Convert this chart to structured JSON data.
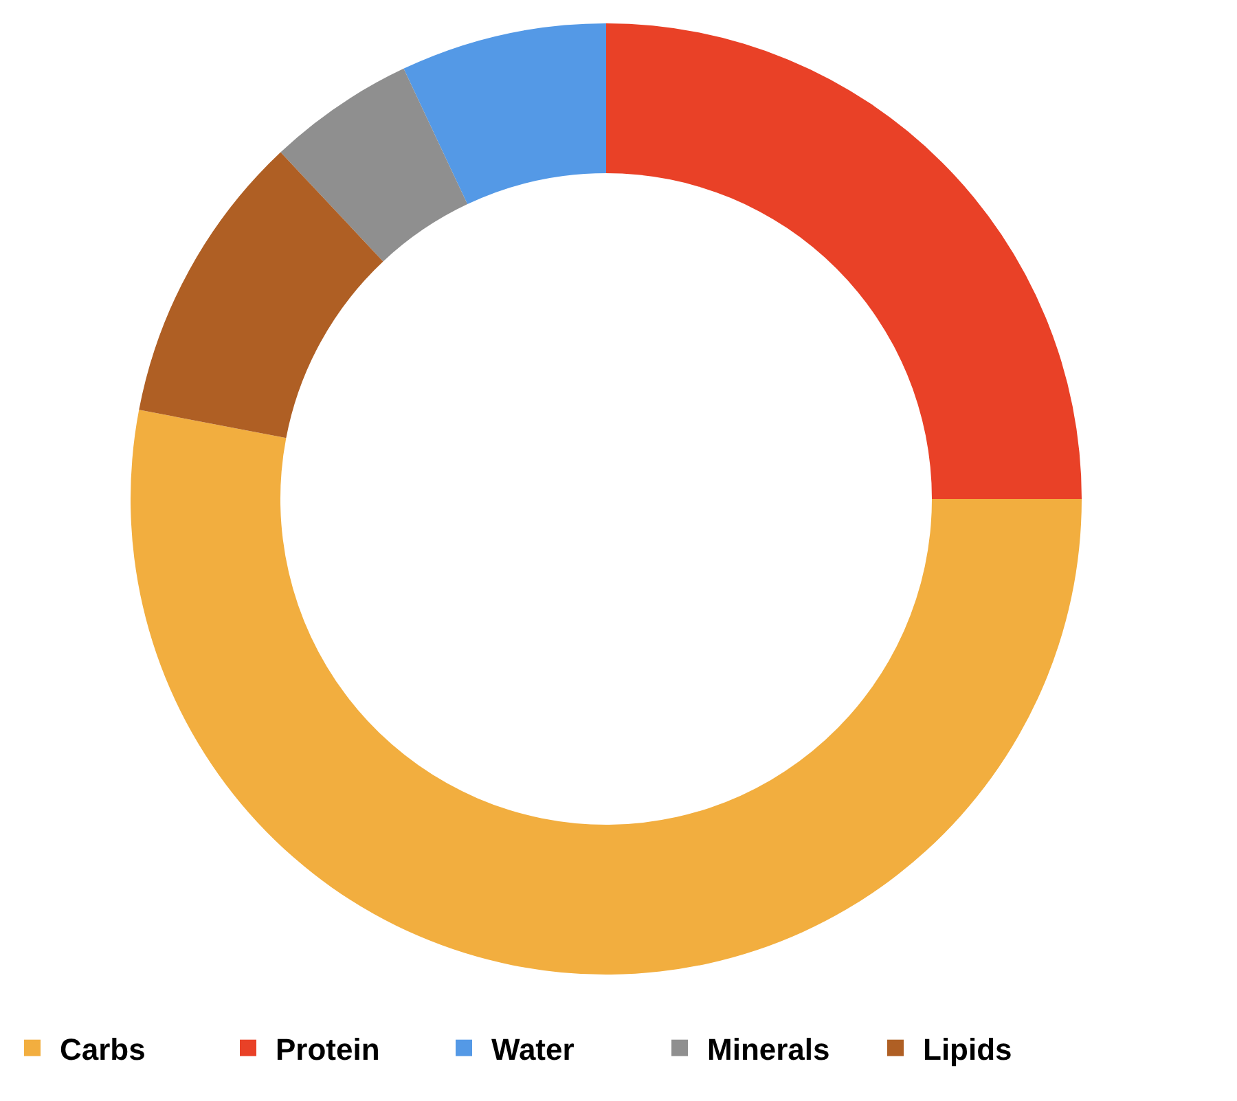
{
  "chart_data": {
    "type": "donut",
    "categories": [
      "Carbs",
      "Protein",
      "Water",
      "Minerals",
      "Lipids"
    ],
    "values": [
      53,
      25,
      7,
      5,
      10
    ],
    "colors": [
      "#f2ae3f",
      "#e94127",
      "#5499e6",
      "#8f8f8f",
      "#af5f24"
    ],
    "legend": "bottom"
  }
}
